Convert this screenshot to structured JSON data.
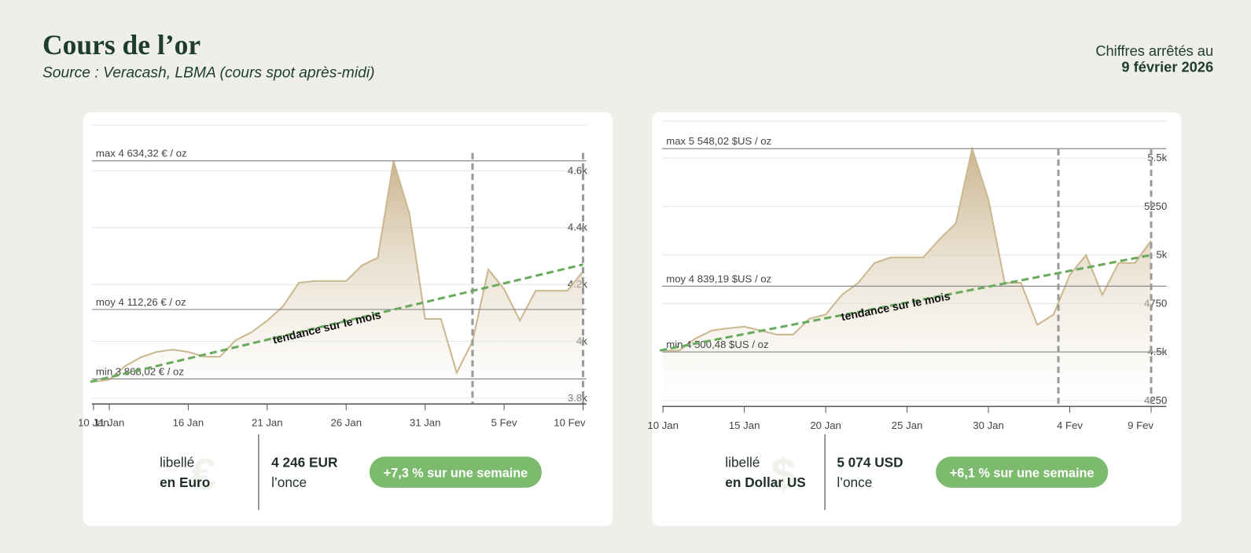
{
  "header": {
    "title": "Cours de l’or",
    "source": "Source : Veracash, LBMA (cours spot après-midi)",
    "date_prefix": "Chiffres arrêtés au",
    "date": "9 février 2026"
  },
  "chart_data": [
    {
      "type": "area",
      "color": "#cbb790",
      "categories": [
        "10 Jan",
        "11 Jan",
        null,
        null,
        null,
        null,
        "16 Jan",
        null,
        null,
        null,
        null,
        "21 Jan",
        null,
        null,
        null,
        null,
        "26 Jan",
        null,
        null,
        null,
        null,
        "31 Jan",
        null,
        null,
        null,
        null,
        "5 Fev",
        null,
        null,
        null,
        null,
        "10 Fev"
      ],
      "values": [
        3858,
        3866,
        3913,
        3944,
        3963,
        3971,
        3963,
        3946,
        3946,
        4004,
        4032,
        4073,
        4123,
        4206,
        4212,
        4212,
        4212,
        4267,
        4294,
        4634,
        4450,
        4079,
        4079,
        3890,
        4000,
        4253,
        4184,
        4073,
        4178,
        4178,
        4178,
        4246
      ],
      "ylim": [
        3780,
        4760
      ],
      "yticks": [
        {
          "value": 3800,
          "label": "3.8k"
        },
        {
          "value": 4000,
          "label": "4k"
        },
        {
          "value": 4200,
          "label": "4.2k"
        },
        {
          "value": 4400,
          "label": "4.4k"
        },
        {
          "value": 4600,
          "label": "4.6k"
        }
      ],
      "grid": true,
      "reference_lines": [
        {
          "label": "max 4 634,32 € / oz",
          "value": 4634.32
        },
        {
          "label": "moy 4 112,26 € / oz",
          "value": 4112.26
        },
        {
          "label": "min 3 868,02 € / oz",
          "value": 3868.02
        }
      ],
      "vlines": [
        24,
        31
      ],
      "trend": {
        "label": "tendance sur le mois",
        "values": [
          3858,
          4270
        ],
        "color": "#6aaa5e"
      }
    },
    {
      "type": "area",
      "color": "#cbb790",
      "categories": [
        "10 Jan",
        null,
        null,
        null,
        null,
        "15 Jan",
        null,
        null,
        null,
        null,
        "20 Jan",
        null,
        null,
        null,
        null,
        "25 Jan",
        null,
        null,
        null,
        null,
        "30 Jan",
        null,
        null,
        null,
        null,
        "4 Fev",
        null,
        null,
        null,
        null,
        "9 Fev"
      ],
      "values": [
        4508,
        4508,
        4570,
        4611,
        4623,
        4631,
        4611,
        4590,
        4590,
        4672,
        4693,
        4795,
        4857,
        4959,
        4988,
        4988,
        4988,
        5082,
        5164,
        5548,
        5287,
        4857,
        4857,
        4640,
        4693,
        4898,
        5000,
        4795,
        4959,
        4959,
        5074
      ],
      "ylim": [
        4220,
        5690
      ],
      "yticks": [
        4250,
        {
          "value": 4500,
          "label": "4.5k"
        },
        4750,
        {
          "value": 5000,
          "label": "5k"
        },
        5250,
        {
          "value": 5500,
          "label": "5.5k"
        }
      ],
      "grid": true,
      "reference_lines": [
        {
          "label": "max 5 548,02 $US / oz",
          "value": 5548.02
        },
        {
          "label": "moy 4 839,19 $US / oz",
          "value": 4839.19
        },
        {
          "label": "min 4 500,48 $US / oz",
          "value": 4500.48
        }
      ],
      "vlines": [
        24.3,
        30
      ],
      "trend": {
        "label": "tendance sur le mois",
        "values": [
          4508,
          5000
        ],
        "color": "#6aaa5e"
      }
    }
  ],
  "cards": [
    {
      "label": "libellé",
      "currency": "en Euro",
      "icon": "€",
      "price": "4 246 EUR",
      "unit": "l’once",
      "change": "+7,3 % sur une semaine"
    },
    {
      "label": "libellé",
      "currency": "en Dollar US",
      "icon": "$",
      "price": "5 074 USD",
      "unit": "l’once",
      "change": "+6,1 % sur une semaine"
    }
  ]
}
